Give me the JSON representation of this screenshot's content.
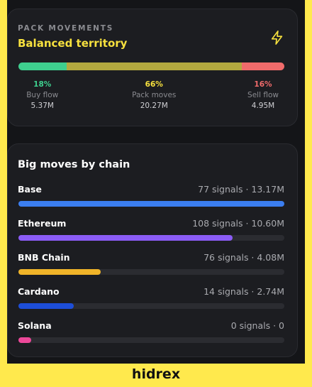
{
  "header": {
    "eyebrow": "PACK MOVEMENTS",
    "title": "Balanced territory"
  },
  "flow": {
    "segments": [
      {
        "label": "Buy flow",
        "value": 18,
        "value_label": "18%",
        "amount": "5.37M",
        "color": "#3ecf8e"
      },
      {
        "label": "Pack moves",
        "value": 66,
        "value_label": "66%",
        "amount": "20.27M",
        "color": "#b3a93f"
      },
      {
        "label": "Sell flow",
        "value": 16,
        "value_label": "16%",
        "amount": "4.95M",
        "color": "#f06b6b"
      }
    ]
  },
  "chains": {
    "title": "Big moves by chain",
    "rows": [
      {
        "name": "Base",
        "stats": "77 signals · 13.17M",
        "volume": 13.17,
        "color": "#3b7ef0"
      },
      {
        "name": "Ethereum",
        "stats": "108 signals · 10.60M",
        "volume": 10.6,
        "color": "#8b5cf6"
      },
      {
        "name": "BNB Chain",
        "stats": "76 signals · 4.08M",
        "volume": 4.08,
        "color": "#f0b429"
      },
      {
        "name": "Cardano",
        "stats": "14 signals · 2.74M",
        "volume": 2.74,
        "color": "#1d4ed8"
      },
      {
        "name": "Solana",
        "stats": "0 signals · 0",
        "volume": 0,
        "color": "#ec4899"
      }
    ]
  },
  "footer": {
    "brand": "hidrex"
  }
}
